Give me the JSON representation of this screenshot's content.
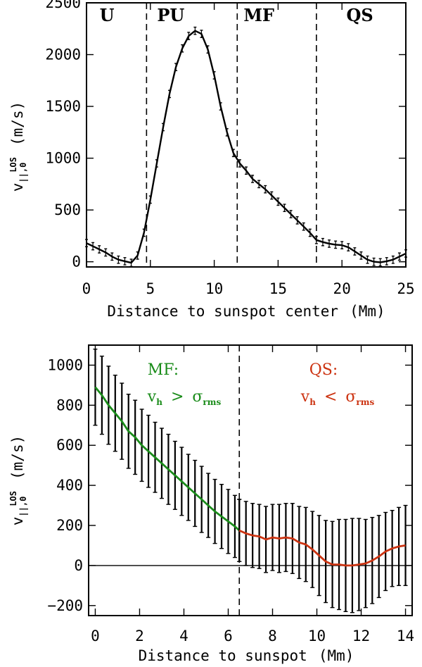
{
  "chart_data": [
    {
      "type": "line",
      "name": "top",
      "xlabel_text": "Distance to sunspot center",
      "xlabel_unit": "(Mm)",
      "ylabel_main": "v",
      "ylabel_sub": "||,0",
      "ylabel_sup": "LOS",
      "ylabel_unit": "(m/s)",
      "xlim": [
        0,
        25
      ],
      "ylim": [
        -50,
        2500
      ],
      "xticks": [
        "0",
        "5",
        "10",
        "15",
        "20",
        "25"
      ],
      "xtick_values": [
        0,
        5,
        10,
        15,
        20,
        25
      ],
      "yticks": [
        "0",
        "500",
        "1000",
        "1500",
        "2000",
        "2500"
      ],
      "ytick_values": [
        0,
        500,
        1000,
        1500,
        2000,
        2500
      ],
      "boundaries": [
        4.7,
        11.8,
        18.0
      ],
      "regions": [
        {
          "label": "U",
          "x": 1.6
        },
        {
          "label": "PU",
          "x": 6.6
        },
        {
          "label": "MF",
          "x": 13.5
        },
        {
          "label": "QS",
          "x": 21.4
        }
      ],
      "series": [
        {
          "name": "mean",
          "color": "#000000",
          "x": [
            0.0,
            0.5,
            1.0,
            1.5,
            2.0,
            2.5,
            3.0,
            3.5,
            4.0,
            4.5,
            5.0,
            5.5,
            6.0,
            6.5,
            7.0,
            7.5,
            8.0,
            8.5,
            9.0,
            9.5,
            10.0,
            10.5,
            11.0,
            11.5,
            12.0,
            12.5,
            13.0,
            13.5,
            14.0,
            14.5,
            15.0,
            15.5,
            16.0,
            16.5,
            17.0,
            17.5,
            18.0,
            18.5,
            19.0,
            19.5,
            20.0,
            20.5,
            21.0,
            21.5,
            22.0,
            22.5,
            23.0,
            23.5,
            24.0,
            24.5,
            25.0
          ],
          "y": [
            180,
            150,
            120,
            90,
            50,
            20,
            5,
            -10,
            60,
            280,
            600,
            950,
            1300,
            1620,
            1880,
            2060,
            2180,
            2230,
            2200,
            2050,
            1800,
            1500,
            1250,
            1050,
            950,
            880,
            800,
            750,
            700,
            640,
            580,
            520,
            460,
            400,
            340,
            280,
            210,
            190,
            175,
            165,
            160,
            140,
            100,
            60,
            20,
            0,
            -5,
            5,
            20,
            50,
            80
          ],
          "err": 35
        }
      ]
    },
    {
      "type": "line",
      "name": "bottom",
      "xlabel_text": "Distance to sunspot",
      "xlabel_unit": "(Mm)",
      "ylabel_main": "v",
      "ylabel_sub": "||,0",
      "ylabel_sup": "LOS",
      "ylabel_unit": "(m/s)",
      "xlim": [
        -0.3,
        14.3
      ],
      "ylim": [
        -250,
        1100
      ],
      "xticks": [
        "0",
        "2",
        "4",
        "6",
        "8",
        "10",
        "12",
        "14"
      ],
      "xtick_values": [
        0,
        2,
        4,
        6,
        8,
        10,
        12,
        14
      ],
      "yticks": [
        "−200",
        "0",
        "200",
        "400",
        "600",
        "800",
        "1000"
      ],
      "ytick_values": [
        -200,
        0,
        200,
        400,
        600,
        800,
        1000
      ],
      "boundary": 6.5,
      "zero_line": true,
      "annotations": {
        "left_title": "MF:",
        "left_v": "v",
        "left_v_sub": "h",
        "left_op": ">",
        "left_sigma": "σ",
        "left_sigma_sub": "rms",
        "right_title": "QS:",
        "right_v": "v",
        "right_v_sub": "h",
        "right_op": "<",
        "right_sigma": "σ",
        "right_sigma_sub": "rms"
      },
      "series": [
        {
          "name": "MF",
          "color": "#1a8c1a",
          "x": [
            0.0,
            0.3,
            0.6,
            0.9,
            1.2,
            1.5,
            1.8,
            2.1,
            2.4,
            2.7,
            3.0,
            3.3,
            3.6,
            3.9,
            4.2,
            4.5,
            4.8,
            5.1,
            5.4,
            5.7,
            6.0,
            6.3,
            6.5
          ],
          "y": [
            890,
            850,
            800,
            760,
            720,
            670,
            640,
            600,
            570,
            540,
            510,
            480,
            450,
            420,
            390,
            360,
            330,
            300,
            270,
            245,
            220,
            195,
            175
          ],
          "err": [
            190,
            195,
            195,
            190,
            190,
            185,
            185,
            180,
            180,
            175,
            175,
            175,
            170,
            170,
            165,
            165,
            165,
            160,
            160,
            160,
            160,
            155,
            155
          ]
        },
        {
          "name": "QS",
          "color": "#cc3311",
          "x": [
            6.5,
            6.8,
            7.1,
            7.4,
            7.7,
            8.0,
            8.3,
            8.6,
            8.9,
            9.2,
            9.5,
            9.8,
            10.1,
            10.4,
            10.7,
            11.0,
            11.3,
            11.6,
            11.9,
            12.2,
            12.5,
            12.8,
            13.1,
            13.4,
            13.7,
            14.0
          ],
          "y": [
            175,
            160,
            150,
            145,
            130,
            140,
            135,
            140,
            135,
            115,
            105,
            80,
            50,
            20,
            5,
            5,
            0,
            0,
            5,
            10,
            25,
            45,
            70,
            85,
            95,
            100
          ],
          "err": [
            155,
            160,
            160,
            160,
            165,
            165,
            170,
            170,
            175,
            180,
            185,
            190,
            200,
            205,
            215,
            225,
            230,
            235,
            230,
            220,
            215,
            205,
            195,
            190,
            195,
            200
          ]
        }
      ]
    }
  ]
}
